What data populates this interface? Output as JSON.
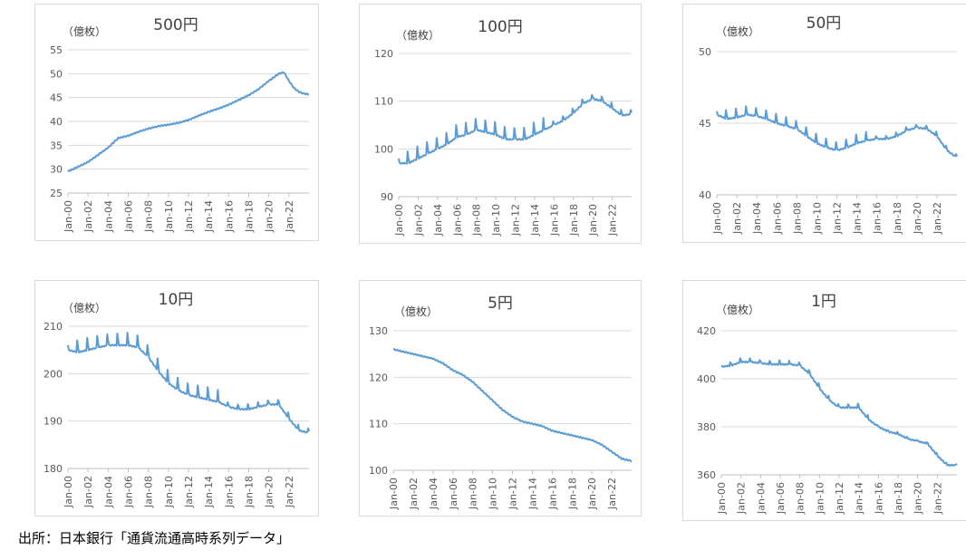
{
  "source": "出所：日本銀行「通貨流通高時系列データ」",
  "colors": {
    "line": "#5b9bd5",
    "grid": "#d9d9d9",
    "axis": "#bfbfbf"
  },
  "x_tick_labels": [
    "Jan-00",
    "Jan-02",
    "Jan-04",
    "Jan-06",
    "Jan-08",
    "Jan-10",
    "Jan-12",
    "Jan-14",
    "Jan-16",
    "Jan-18",
    "Jan-20",
    "Jan-22"
  ],
  "chart_data": [
    {
      "type": "line",
      "title": "500円",
      "ylabel": "（億枚）",
      "ylim": [
        25,
        55
      ],
      "yticks": [
        25,
        30,
        35,
        40,
        45,
        50,
        55
      ],
      "x": [
        2000,
        2001,
        2002,
        2003,
        2004,
        2005,
        2006,
        2007,
        2008,
        2009,
        2010,
        2011,
        2012,
        2013,
        2014,
        2015,
        2016,
        2017,
        2018,
        2019,
        2020,
        2021,
        2021.5,
        2022,
        2022.5,
        2023,
        2023.5,
        2024
      ],
      "values": [
        29.5,
        30.5,
        31.5,
        33,
        34.5,
        36.5,
        37,
        37.8,
        38.5,
        39,
        39.3,
        39.7,
        40.3,
        41.2,
        42,
        42.7,
        43.5,
        44.5,
        45.5,
        46.8,
        48.5,
        50,
        50.3,
        48.5,
        47,
        46.2,
        45.8,
        45.7
      ],
      "grid": true
    },
    {
      "type": "line",
      "title": "100円",
      "ylabel": "（億枚）",
      "ylim": [
        90,
        120
      ],
      "yticks": [
        90,
        100,
        110,
        120
      ],
      "x": [
        2000,
        2001,
        2002,
        2003,
        2004,
        2005,
        2006,
        2007,
        2008,
        2009,
        2010,
        2011,
        2012,
        2013,
        2014,
        2015,
        2016,
        2017,
        2018,
        2019,
        2020,
        2021,
        2022,
        2023,
        2024
      ],
      "values": [
        97,
        97,
        98,
        99,
        100,
        101,
        102.5,
        103,
        104,
        103.5,
        103,
        102,
        102,
        102,
        103,
        104,
        105,
        106,
        107.5,
        109.5,
        110.5,
        110,
        108.5,
        107,
        107.3
      ],
      "spikes": [
        0,
        2.5
      ],
      "grid": true
    },
    {
      "type": "line",
      "title": "50円",
      "ylabel": "（億枚）",
      "ylim": [
        40,
        50
      ],
      "yticks": [
        40,
        45,
        50
      ],
      "x": [
        2000,
        2001,
        2002,
        2003,
        2004,
        2005,
        2006,
        2007,
        2008,
        2009,
        2010,
        2011,
        2012,
        2013,
        2014,
        2015,
        2016,
        2017,
        2018,
        2019,
        2020,
        2021,
        2022,
        2023,
        2024
      ],
      "values": [
        45.6,
        45.3,
        45.4,
        45.6,
        45.5,
        45.3,
        45.0,
        44.8,
        44.6,
        44.1,
        43.6,
        43.3,
        43.1,
        43.3,
        43.6,
        43.8,
        43.9,
        43.9,
        44.1,
        44.5,
        44.7,
        44.6,
        44.1,
        43.1,
        42.6
      ],
      "spikes": [
        0,
        0.6
      ],
      "grid": true
    },
    {
      "type": "line",
      "title": "10円",
      "ylabel": "（億枚）",
      "ylim": [
        180,
        210
      ],
      "yticks": [
        180,
        190,
        200,
        210
      ],
      "x": [
        2000,
        2001,
        2002,
        2003,
        2004,
        2005,
        2006,
        2007,
        2008,
        2009,
        2010,
        2011,
        2012,
        2013,
        2014,
        2015,
        2016,
        2017,
        2018,
        2019,
        2020,
        2021,
        2022,
        2023,
        2024
      ],
      "values": [
        205,
        204.5,
        205,
        205.5,
        206,
        206,
        206,
        205.5,
        203.5,
        200.5,
        198,
        196.5,
        195.5,
        195,
        194.5,
        194,
        193,
        192.5,
        192.5,
        193,
        193.5,
        193.5,
        190.5,
        188,
        187.5
      ],
      "spikes": [
        0,
        2.5
      ],
      "grid": true
    },
    {
      "type": "line",
      "title": "5円",
      "ylabel": "（億枚）",
      "ylim": [
        100,
        130
      ],
      "yticks": [
        100,
        110,
        120,
        130
      ],
      "x": [
        2000,
        2001,
        2002,
        2003,
        2004,
        2005,
        2006,
        2007,
        2008,
        2009,
        2010,
        2011,
        2012,
        2013,
        2014,
        2015,
        2016,
        2017,
        2018,
        2019,
        2020,
        2021,
        2022,
        2023,
        2024
      ],
      "values": [
        126,
        125.5,
        125,
        124.5,
        124,
        123,
        121.5,
        120.5,
        119,
        117,
        115,
        113,
        111.5,
        110.5,
        110,
        109.5,
        108.5,
        108,
        107.5,
        107,
        106.5,
        105.5,
        104,
        102.5,
        102
      ],
      "grid": true
    },
    {
      "type": "line",
      "title": "1円",
      "ylabel": "（億枚）",
      "ylim": [
        360,
        420
      ],
      "yticks": [
        360,
        380,
        400,
        420
      ],
      "x": [
        2000,
        2001,
        2002,
        2003,
        2004,
        2005,
        2006,
        2007,
        2008,
        2009,
        2010,
        2011,
        2012,
        2013,
        2014,
        2015,
        2016,
        2017,
        2018,
        2019,
        2020,
        2021,
        2022,
        2023,
        2024
      ],
      "values": [
        405,
        405.5,
        407,
        407,
        406.5,
        406,
        406,
        406,
        405.5,
        402,
        396,
        391,
        388,
        388,
        388,
        383,
        380,
        378,
        377,
        375,
        374,
        373,
        368,
        364,
        364
      ],
      "spikes": [
        0,
        1.5
      ],
      "grid": true
    }
  ]
}
